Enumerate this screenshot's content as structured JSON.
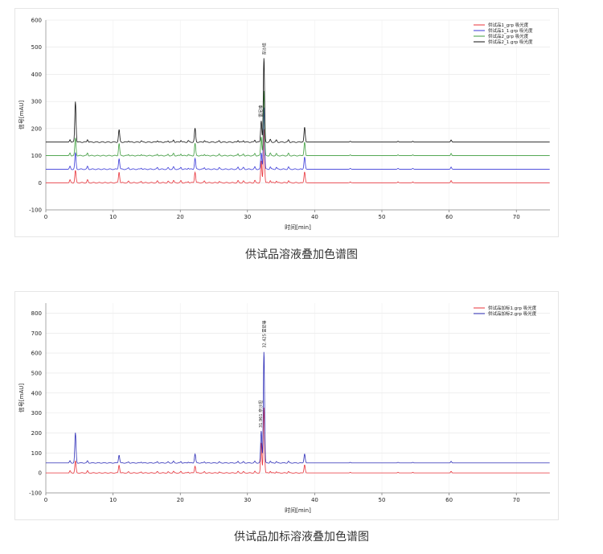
{
  "chart_data": [
    {
      "type": "line",
      "title": "",
      "xlabel": "时间[min]",
      "ylabel": "信号[mAU]",
      "xlim": [
        0,
        75
      ],
      "ylim": [
        -100,
        600
      ],
      "xticks": [
        0,
        10,
        20,
        30,
        40,
        50,
        60,
        70
      ],
      "yticks": [
        -100,
        0,
        100,
        200,
        300,
        400,
        500,
        600
      ],
      "legend_position": "top-right",
      "grid": true,
      "series": [
        {
          "name": "供试品1_grp 吸光度",
          "color": "#e8333a",
          "baseline": 0
        },
        {
          "name": "供试品1_1.grp 吸光度",
          "color": "#3a3ad8",
          "baseline": 50
        },
        {
          "name": "供试品2_grp 吸光度",
          "color": "#3f9e3f",
          "baseline": 100
        },
        {
          "name": "供试品2_1.grp 吸光度",
          "color": "#111111",
          "baseline": 150
        }
      ],
      "peaks": [
        {
          "rt": 4.4,
          "heights": [
            45,
            60,
            65,
            150
          ]
        },
        {
          "rt": 10.9,
          "heights": [
            40,
            40,
            45,
            45
          ]
        },
        {
          "rt": 22.2,
          "heights": [
            40,
            40,
            45,
            50
          ]
        },
        {
          "rt": 32.05,
          "heights": [
            80,
            60,
            70,
            80
          ]
        },
        {
          "rt": 32.45,
          "heights": [
            200,
            230,
            240,
            310
          ]
        },
        {
          "rt": 38.5,
          "heights": [
            40,
            45,
            50,
            55
          ]
        }
      ],
      "peak_labels": [
        "奈沙坦",
        "雷尼嗪"
      ]
    },
    {
      "type": "line",
      "title": "",
      "xlabel": "时间[min]",
      "ylabel": "信号[mAU]",
      "xlim": [
        0,
        75
      ],
      "ylim": [
        -100,
        850
      ],
      "xticks": [
        0,
        10,
        20,
        30,
        40,
        50,
        60,
        70
      ],
      "yticks": [
        -100,
        0,
        100,
        200,
        300,
        400,
        500,
        600,
        700,
        800
      ],
      "legend_position": "top-right",
      "grid": true,
      "series": [
        {
          "name": "供试品加标1.grp 吸光度",
          "color": "#e8333a",
          "baseline": 0
        },
        {
          "name": "供试品加标2.grp 吸光度",
          "color": "#2f2fb8",
          "baseline": 50
        }
      ],
      "peaks": [
        {
          "rt": 4.4,
          "heights": [
            60,
            150
          ]
        },
        {
          "rt": 10.9,
          "heights": [
            40,
            40
          ]
        },
        {
          "rt": 22.2,
          "heights": [
            35,
            45
          ]
        },
        {
          "rt": 32.05,
          "heights": [
            150,
            160
          ]
        },
        {
          "rt": 32.45,
          "heights": [
            330,
            560
          ]
        },
        {
          "rt": 38.5,
          "heights": [
            40,
            45
          ]
        }
      ],
      "peak_labels": [
        "32.425 雷尼嗪",
        "31.961 奈沙坦"
      ]
    }
  ],
  "captions": {
    "first": "供试品溶液叠加色谱图",
    "second": "供试品加标溶液叠加色谱图"
  }
}
